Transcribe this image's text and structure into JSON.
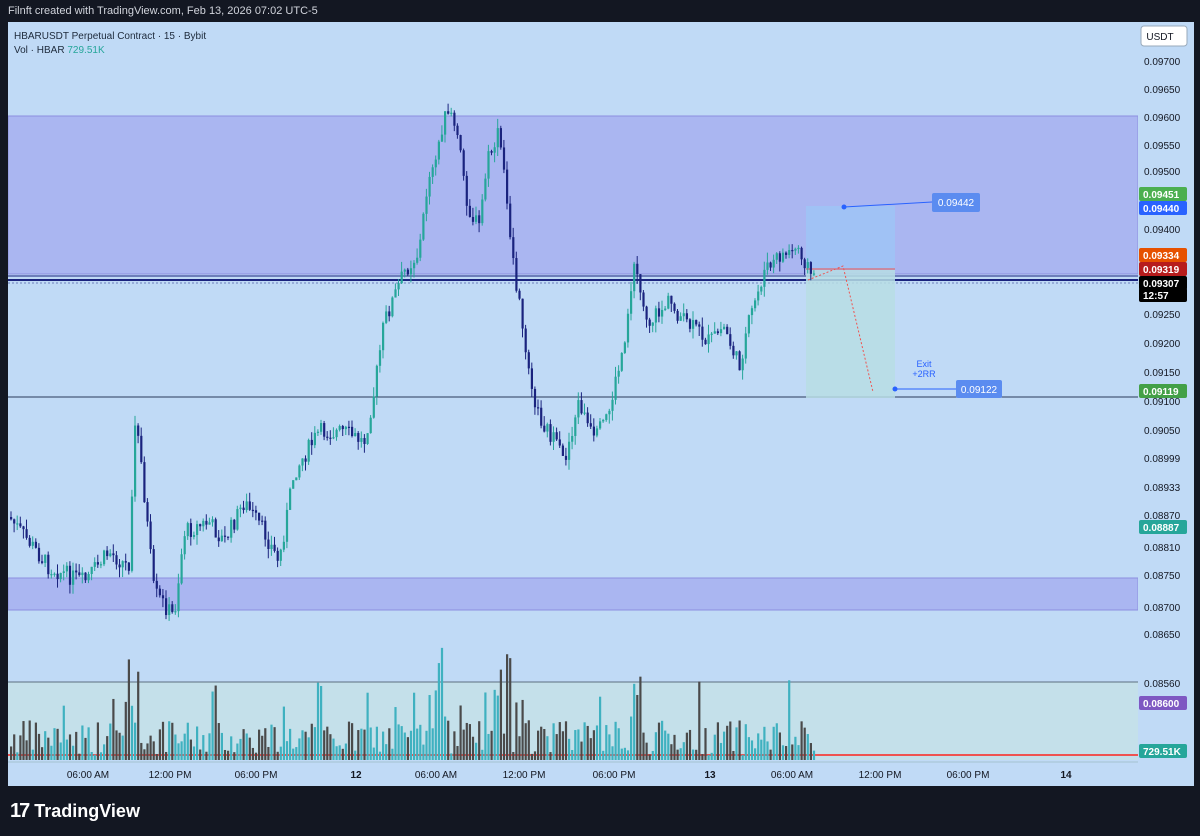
{
  "header": {
    "caption": "Filnft created with TradingView.com, Feb 13, 2026 07:02 UTC-5"
  },
  "legend": {
    "symbol_line": "HBARUSDT Perpetual Contract · 15 · Bybit",
    "vol_label": "Vol · HBAR",
    "vol_value": "729.51K"
  },
  "currency_button": "USDT",
  "price_axis": {
    "ticks": [
      "0.09700",
      "0.09650",
      "0.09600",
      "0.09550",
      "0.09500",
      "0.09400",
      "0.09250",
      "0.09200",
      "0.09150",
      "0.09100",
      "0.09050",
      "0.08999",
      "0.08933",
      "0.08870",
      "0.08810",
      "0.08750",
      "0.08700",
      "0.08650",
      "0.08560"
    ],
    "tags": [
      {
        "text": "0.09451",
        "color": "#4caf50"
      },
      {
        "text": "0.09440",
        "color": "#2962ff"
      },
      {
        "text": "0.09334",
        "color": "#e65100"
      },
      {
        "text": "0.09319",
        "color": "#b71c1c"
      },
      {
        "text": "0.09307",
        "color": "#000000"
      },
      {
        "text": "12:57",
        "color": "#000000"
      },
      {
        "text": "0.09119",
        "color": "#43a047"
      },
      {
        "text": "0.08887",
        "color": "#26a69a"
      },
      {
        "text": "0.08600",
        "color": "#7e57c2"
      },
      {
        "text": "729.51K",
        "color": "#26a69a"
      }
    ]
  },
  "time_axis": {
    "ticks": [
      "06:00 AM",
      "12:00 PM",
      "06:00 PM",
      "12",
      "06:00 AM",
      "12:00 PM",
      "06:00 PM",
      "13",
      "06:00 AM",
      "12:00 PM",
      "06:00 PM",
      "14"
    ]
  },
  "annotations": {
    "target_label": "0.09442",
    "stop_label": "0.09122",
    "exit_line1": "Exit",
    "exit_line2": "+2RR"
  },
  "colors": {
    "up": "#26a69a",
    "down": "#1a237e",
    "chart_bg": "#c0daf6",
    "zone": "#aab6f1"
  },
  "chart_data": {
    "type": "candlestick",
    "symbol": "HBARUSDT Perpetual Contract",
    "interval": "15",
    "exchange": "Bybit",
    "x": [
      "06:00 AM",
      "12:00 PM",
      "06:00 PM",
      "12",
      "06:00 AM",
      "12:00 PM",
      "06:00 PM",
      "13",
      "06:00 AM"
    ],
    "close": [
      0.0884,
      0.0886,
      0.0889,
      0.0898,
      0.0952,
      0.0928,
      0.0928,
      0.0925,
      0.0931
    ],
    "high": [
      0.0888,
      0.091,
      0.0895,
      0.0906,
      0.0966,
      0.0959,
      0.0938,
      0.0931,
      0.0939
    ],
    "low": [
      0.0881,
      0.0871,
      0.0883,
      0.0894,
      0.093,
      0.0898,
      0.0912,
      0.0914,
      0.0931
    ],
    "ylim": [
      0.085,
      0.0972
    ],
    "levels": {
      "last_price": 0.09307,
      "target": 0.09442,
      "stop": 0.09122
    }
  }
}
